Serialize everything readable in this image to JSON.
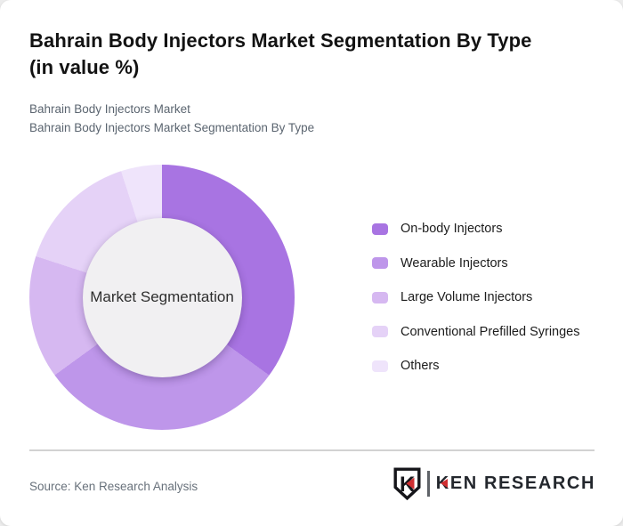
{
  "header": {
    "title": "Bahrain Body Injectors Market Segmentation By Type\n(in value %)",
    "subtitle_line1": "Bahrain Body Injectors Market",
    "subtitle_line2": "Bahrain Body Injectors Market Segmentation By Type"
  },
  "chart_data": {
    "type": "pie",
    "subtype": "donut",
    "title": "Bahrain Body Injectors Market Segmentation By Type (in value %)",
    "unit": "value %",
    "center_label": "Market Segmentation",
    "categories": [
      "On-body Injectors",
      "Wearable Injectors",
      "Large Volume Injectors",
      "Conventional Prefilled Syringes",
      "Others"
    ],
    "values": [
      35,
      30,
      15,
      15,
      5
    ],
    "colors": [
      "#a874e2",
      "#be96ea",
      "#d6b8f1",
      "#e5d2f7",
      "#efe4fb"
    ],
    "start_angle_deg": 0,
    "direction": "clockwise",
    "inner_radius_ratio": 0.6,
    "inner_circle_color": "#f1f0f2",
    "legend_position": "right"
  },
  "footer": {
    "source": "Source: Ken Research Analysis",
    "logo": {
      "mark_letter": "K",
      "brand_k": "K",
      "brand_rest": "EN RESEARCH",
      "accent_color": "#cf2e31"
    }
  }
}
